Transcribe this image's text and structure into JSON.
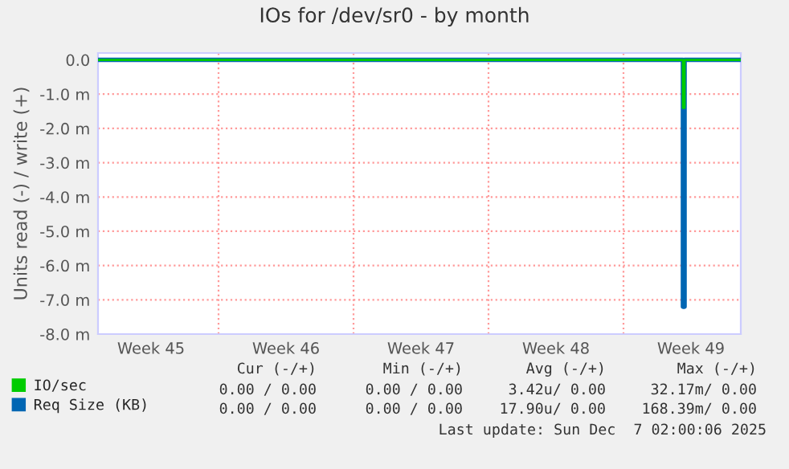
{
  "chart_data": {
    "type": "line",
    "title": "IOs for /dev/sr0 - by month",
    "ylabel": "Units read (-) / write (+)",
    "series": [
      {
        "name": "IO/sec",
        "color": "#00cc00",
        "x": [
          "2025-11-03T18:00",
          "2025-12-04T02:00",
          "2025-12-04T02:00",
          "2025-12-04T04:00",
          "2025-12-04T04:00",
          "2025-12-07T02:00"
        ],
        "values": [
          0,
          0,
          -1.4,
          -1.4,
          0,
          0
        ]
      },
      {
        "name": "Req Size (KB)",
        "color": "#0066b3",
        "x": [
          "2025-11-03T18:00",
          "2025-12-04T02:00",
          "2025-12-04T02:00",
          "2025-12-04T04:00",
          "2025-12-04T04:00",
          "2025-12-07T02:00"
        ],
        "values": [
          0,
          0,
          -7.2,
          -7.2,
          0,
          0
        ]
      }
    ],
    "xlim": [
      "2025-11-03T18:00",
      "2025-12-07T02:00"
    ],
    "xticks": [
      {
        "value": "2025-11-06T12:00",
        "label": "Week 45"
      },
      {
        "value": "2025-11-13T12:00",
        "label": "Week 46"
      },
      {
        "value": "2025-11-20T12:00",
        "label": "Week 47"
      },
      {
        "value": "2025-11-27T12:00",
        "label": "Week 48"
      },
      {
        "value": "2025-12-04T12:00",
        "label": "Week 49"
      }
    ],
    "ylim": [
      -8,
      0.2
    ],
    "yticks": [
      {
        "value": 0,
        "label": "0.0"
      },
      {
        "value": -1,
        "label": "-1.0 m"
      },
      {
        "value": -2,
        "label": "-2.0 m"
      },
      {
        "value": -3,
        "label": "-3.0 m"
      },
      {
        "value": -4,
        "label": "-4.0 m"
      },
      {
        "value": -5,
        "label": "-5.0 m"
      },
      {
        "value": -6,
        "label": "-6.0 m"
      },
      {
        "value": -7,
        "label": "-7.0 m"
      },
      {
        "value": -8,
        "label": "-8.0 m"
      }
    ],
    "ref_lines": [
      {
        "axis": "x",
        "value": "2025-11-10",
        "color": "#ff9999",
        "line_style": "dotted"
      },
      {
        "axis": "x",
        "value": "2025-11-17",
        "color": "#ff9999",
        "line_style": "dotted"
      },
      {
        "axis": "x",
        "value": "2025-11-24",
        "color": "#ff9999",
        "line_style": "dotted"
      },
      {
        "axis": "x",
        "value": "2025-12-01",
        "color": "#ff9999",
        "line_style": "dotted"
      }
    ],
    "grid": "y",
    "legend": "bottom left",
    "marker": "none",
    "line_style": "solid",
    "annotations": [
      "Cur (-/+)",
      "Min (-/+)",
      "Avg (-/+)",
      "Max (-/+)",
      "0.00 / 0.00",
      "0.00 / 0.00",
      "3.42u/ 0.00",
      "32.17m/ 0.00",
      "0.00 / 0.00",
      "0.00 / 0.00",
      "17.90u/ 0.00",
      "168.39m/ 0.00",
      "Last update: Sun Dec  7 02:00:06 2025"
    ]
  }
}
